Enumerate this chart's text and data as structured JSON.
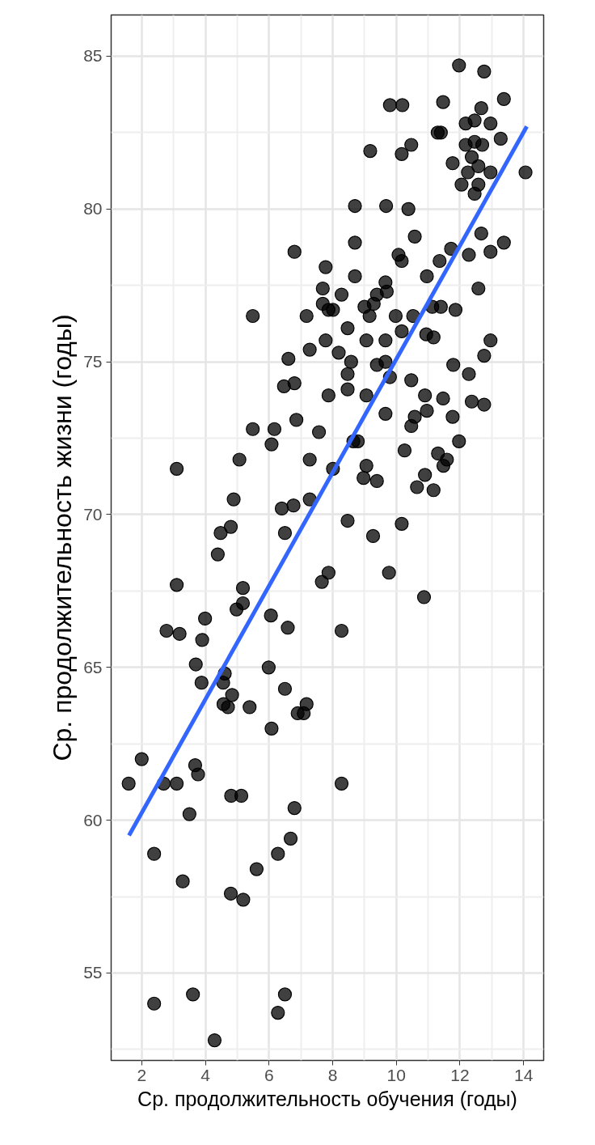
{
  "chart_data": {
    "type": "scatter",
    "xlabel": "Ср. продолжительность обучения (годы)",
    "ylabel": "Ср. продолжительность жизни (годы)",
    "xlim": [
      1.04,
      14.63
    ],
    "ylim": [
      52.14,
      86.35
    ],
    "xticks": [
      2,
      4,
      6,
      8,
      10,
      12,
      14
    ],
    "yticks": [
      55,
      60,
      65,
      70,
      75,
      80,
      85
    ],
    "grid": true,
    "marker": "circle",
    "series": [
      {
        "color": "#000000",
        "x": [
          11.97,
          12.76,
          9.8,
          10.19,
          11.47,
          13.38,
          12.67,
          12.18,
          12.46,
          12.96,
          11.3,
          11.4,
          13.28,
          12.18,
          12.46,
          12.7,
          9.18,
          10.47,
          10.17,
          12.37,
          11.77,
          12.58,
          12.25,
          12.96,
          14.06,
          12.05,
          12.58,
          12.46,
          8.7,
          9.68,
          10.38,
          12.67,
          13.38,
          10.58,
          8.7,
          6.8,
          11.72,
          12.28,
          12.96,
          10.07,
          10.17,
          7.78,
          11.36,
          8.7,
          10.96,
          12.58,
          7.69,
          9.66,
          8.28,
          9.39,
          9.7,
          9.29,
          7.69,
          7.87,
          8.01,
          9.0,
          11.13,
          11.4,
          11.86,
          5.49,
          7.18,
          9.16,
          9.98,
          10.53,
          8.47,
          10.17,
          10.94,
          11.17,
          12.96,
          7.78,
          9.06,
          9.66,
          7.28,
          8.19,
          6.61,
          8.58,
          9.39,
          9.66,
          12.76,
          11.79,
          12.28,
          8.47,
          9.8,
          10.47,
          6.47,
          6.8,
          7.87,
          8.47,
          9.06,
          10.9,
          11.47,
          12.37,
          12.76,
          9.66,
          10.96,
          10.58,
          10.47,
          11.77,
          6.86,
          5.49,
          6.17,
          7.57,
          6.08,
          8.65,
          8.79,
          11.97,
          10.26,
          5.07,
          7.28,
          11.31,
          11.59,
          11.48,
          3.1,
          8.01,
          9.06,
          8.97,
          9.39,
          10.9,
          10.65,
          11.17,
          4.89,
          6.4,
          6.77,
          7.28,
          4.8,
          4.48,
          6.5,
          8.47,
          10.17,
          9.27,
          4.39,
          3.1,
          7.87,
          7.66,
          9.77,
          10.87,
          5.18,
          5.18,
          4.98,
          6.06,
          3.99,
          2.78,
          3.19,
          6.59,
          8.28,
          3.9,
          3.7,
          5.99,
          3.88,
          4.61,
          4.56,
          4.84,
          4.57,
          4.71,
          5.39,
          6.5,
          7.18,
          7.09,
          6.9,
          6.08,
          2.0,
          3.68,
          3.77,
          1.59,
          2.69,
          3.1,
          8.28,
          4.81,
          5.13,
          3.5,
          6.8,
          6.68,
          2.39,
          6.28,
          5.61,
          3.29,
          4.8,
          5.19,
          2.39,
          3.61,
          6.5,
          6.28,
          4.29
        ],
        "values": [
          84.7,
          84.5,
          83.4,
          83.4,
          83.5,
          83.6,
          83.3,
          82.8,
          82.9,
          82.8,
          82.5,
          82.5,
          82.3,
          82.1,
          82.2,
          82.1,
          81.9,
          82.1,
          81.8,
          81.7,
          81.5,
          81.4,
          81.2,
          81.2,
          81.2,
          80.8,
          80.8,
          80.5,
          80.1,
          80.1,
          80.0,
          79.2,
          78.9,
          79.1,
          78.9,
          78.6,
          78.7,
          78.5,
          78.6,
          78.5,
          78.3,
          78.1,
          78.3,
          77.8,
          77.8,
          77.4,
          77.4,
          77.6,
          77.2,
          77.2,
          77.3,
          76.9,
          76.9,
          76.7,
          76.7,
          76.8,
          76.8,
          76.8,
          76.7,
          76.5,
          76.5,
          76.5,
          76.5,
          76.5,
          76.1,
          76.0,
          75.9,
          75.8,
          75.7,
          75.7,
          75.7,
          75.7,
          75.4,
          75.3,
          75.1,
          75.0,
          74.9,
          75.0,
          75.2,
          74.9,
          74.6,
          74.6,
          74.5,
          74.4,
          74.2,
          74.3,
          73.9,
          74.1,
          73.9,
          73.9,
          73.8,
          73.7,
          73.6,
          73.3,
          73.4,
          73.2,
          72.9,
          73.2,
          73.1,
          72.8,
          72.8,
          72.7,
          72.3,
          72.4,
          72.4,
          72.4,
          72.1,
          71.8,
          71.8,
          72.0,
          71.8,
          71.6,
          71.5,
          71.5,
          71.6,
          71.2,
          71.1,
          71.3,
          70.9,
          70.8,
          70.5,
          70.2,
          70.3,
          70.5,
          69.6,
          69.4,
          69.4,
          69.8,
          69.7,
          69.3,
          68.7,
          67.7,
          68.1,
          67.8,
          68.1,
          67.3,
          67.6,
          67.1,
          66.9,
          66.7,
          66.6,
          66.2,
          66.1,
          66.3,
          66.2,
          65.9,
          65.1,
          65.0,
          64.5,
          64.8,
          64.5,
          64.1,
          63.8,
          63.7,
          63.7,
          64.3,
          63.8,
          63.5,
          63.5,
          63.0,
          62.0,
          61.8,
          61.5,
          61.2,
          61.2,
          61.2,
          61.2,
          60.8,
          60.8,
          60.2,
          60.4,
          59.4,
          58.9,
          58.9,
          58.4,
          58.0,
          57.6,
          57.4,
          54.0,
          54.3,
          54.3,
          53.7,
          52.8
        ]
      },
      {
        "type": "line",
        "color": "#3366ff",
        "marker": "none",
        "x": [
          1.6,
          14.1
        ],
        "values": [
          59.5,
          82.7
        ]
      }
    ]
  }
}
